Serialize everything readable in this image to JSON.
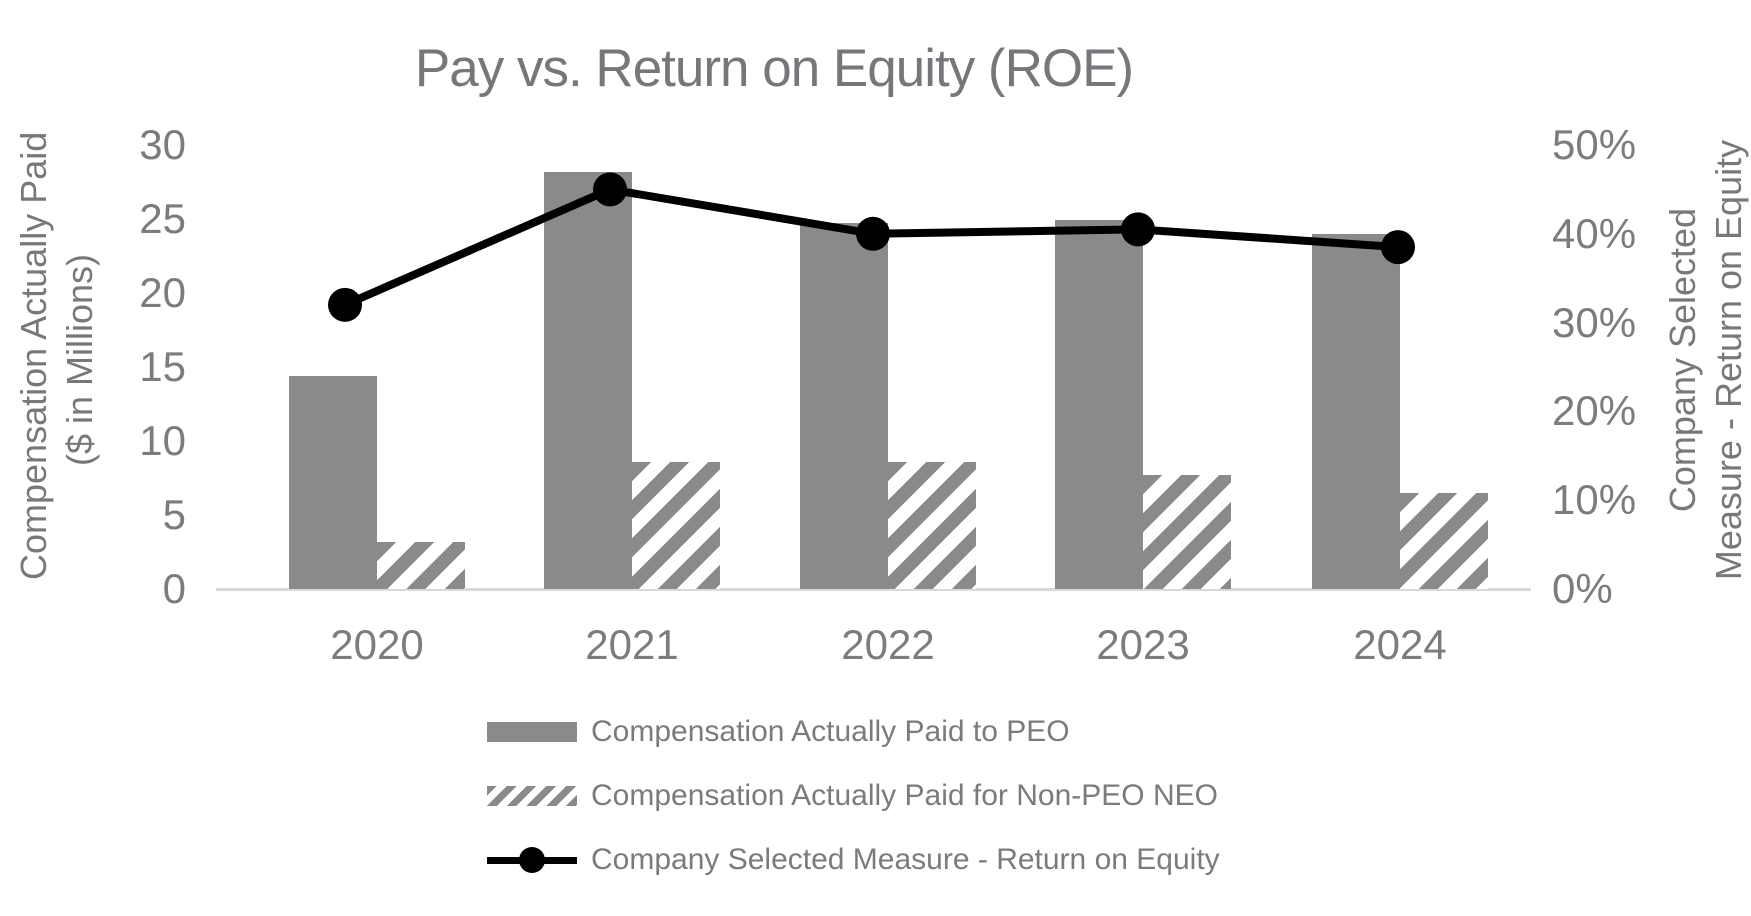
{
  "title": "Pay vs. Return on Equity (ROE)",
  "axes": {
    "left": {
      "title_line1": "Compensation Actually Paid",
      "title_line2": "($ in Millions)",
      "tick_values": [
        0,
        5,
        10,
        15,
        20,
        25,
        30
      ],
      "max": 30
    },
    "right": {
      "title_line1": "Company Selected",
      "title_line2": "Measure - Return on Equity",
      "tick_values": [
        0,
        10,
        20,
        30,
        40,
        50
      ],
      "tick_suffix": "%",
      "max": 50
    },
    "x": {
      "categories": [
        "2020",
        "2021",
        "2022",
        "2023",
        "2024"
      ]
    }
  },
  "legend": {
    "items": [
      {
        "label": "Compensation Actually Paid to PEO",
        "swatch": "solid-bar"
      },
      {
        "label": "Compensation Actually Paid for Non-PEO NEO",
        "swatch": "hatched-bar"
      },
      {
        "label": "Company Selected Measure - Return on Equity",
        "swatch": "line-marker"
      }
    ]
  },
  "colors": {
    "bar_gray": "#8a8a8a",
    "line_black": "#000000",
    "text_gray": "#77787b",
    "tick_gray": "#7b7c7f",
    "axis_line_gray": "#d9d9d9",
    "background": "#ffffff"
  },
  "chart_data": {
    "type": "combo-bar-line",
    "title": "Pay vs. Return on Equity (ROE)",
    "categories": [
      "2020",
      "2021",
      "2022",
      "2023",
      "2024"
    ],
    "series": [
      {
        "name": "Compensation Actually Paid to PEO",
        "type": "bar",
        "style": "solid",
        "axis": "left",
        "values": [
          14.4,
          28.2,
          24.7,
          24.9,
          24.0
        ]
      },
      {
        "name": "Compensation Actually Paid for Non-PEO NEO",
        "type": "bar",
        "style": "hatched",
        "axis": "left",
        "values": [
          3.2,
          8.6,
          8.6,
          7.7,
          6.5
        ]
      },
      {
        "name": "Company Selected Measure - Return on Equity",
        "type": "line",
        "style": "black-line-circle-markers",
        "axis": "right",
        "values": [
          32,
          45,
          40,
          40.5,
          38.5
        ],
        "unit": "%"
      }
    ],
    "ylabel_left": "Compensation Actually Paid ($ in Millions)",
    "ylabel_right": "Company Selected Measure - Return on Equity",
    "ylim_left": [
      0,
      30
    ],
    "ylim_right": [
      0,
      50
    ],
    "grid": false,
    "legend_position": "bottom"
  }
}
